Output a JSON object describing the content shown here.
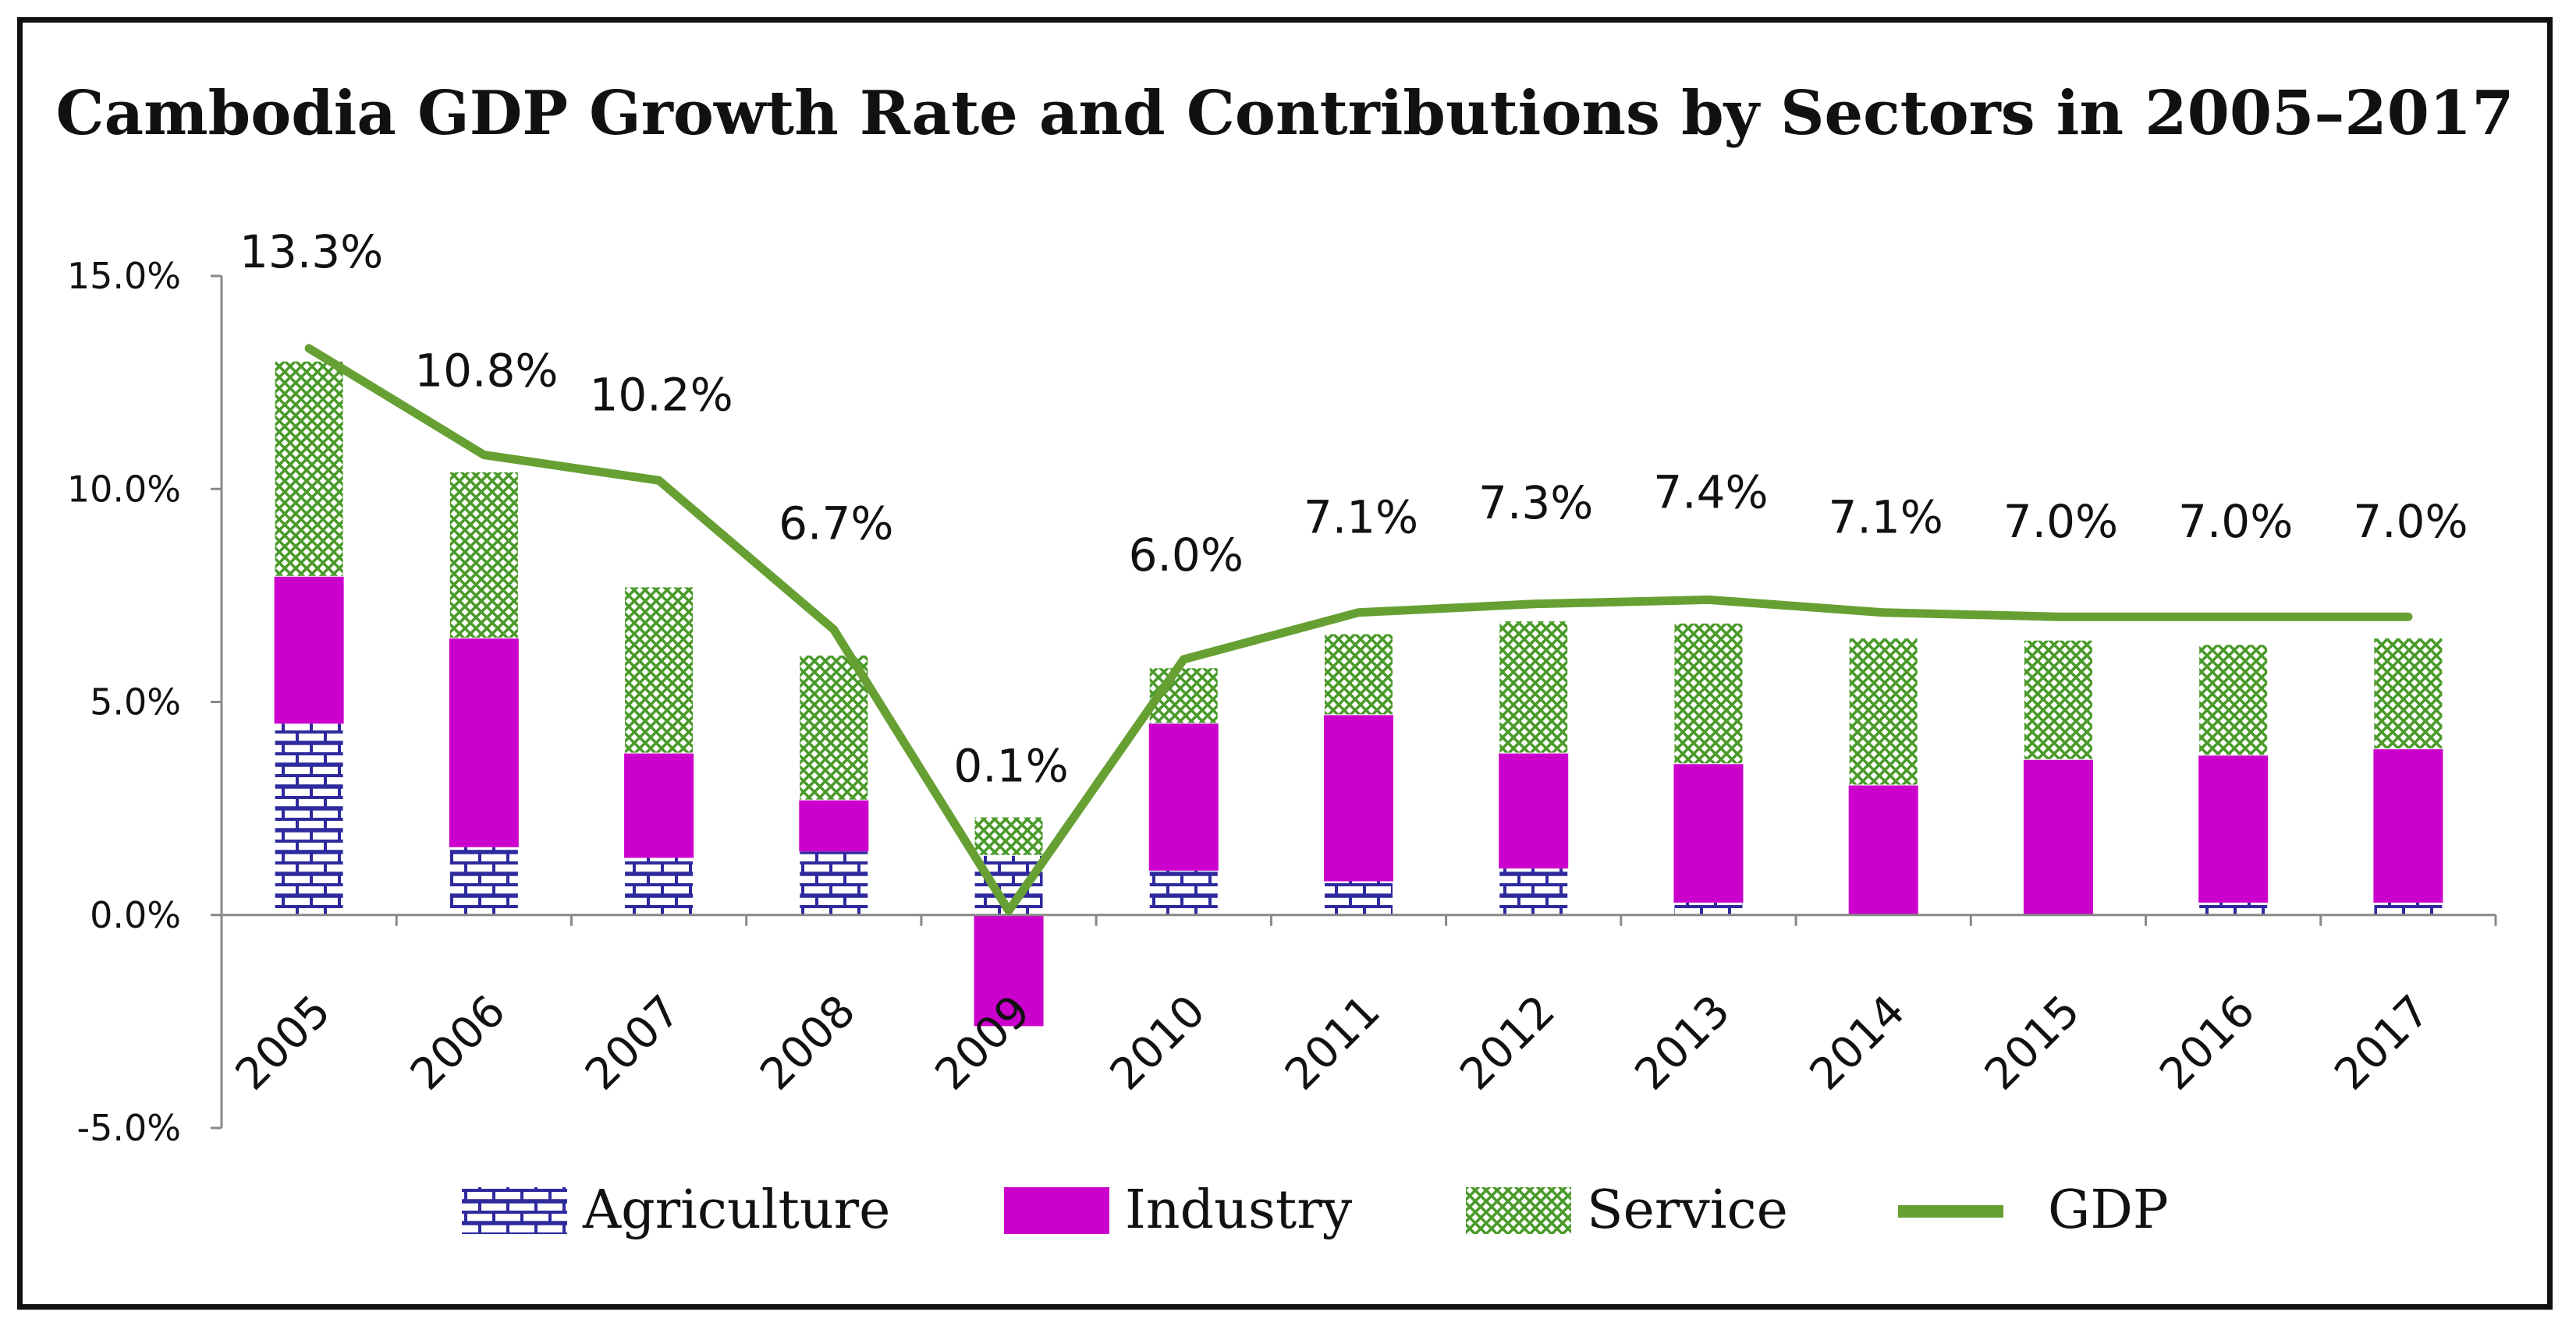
{
  "chart_data": {
    "type": "bar",
    "title": "Cambodia GDP Growth Rate and Contributions by Sectors in 2005–2017",
    "xlabel": "",
    "ylabel": "",
    "ylim": [
      -5.0,
      15.0
    ],
    "yticks": [
      15.0,
      10.0,
      5.0,
      0.0,
      -5.0
    ],
    "ytick_labels": [
      "15.0%",
      "10.0%",
      "5.0%",
      "0.0%",
      "-5.0%"
    ],
    "categories": [
      "2005",
      "2006",
      "2007",
      "2008",
      "2009",
      "2010",
      "2011",
      "2012",
      "2013",
      "2014",
      "2015",
      "2016",
      "2017"
    ],
    "stacked": true,
    "series": [
      {
        "name": "Agriculture",
        "kind": "bar",
        "pattern": "brick",
        "color": "#2e2a9e",
        "values": [
          4.5,
          1.6,
          1.35,
          1.5,
          1.4,
          1.05,
          0.8,
          1.1,
          0.3,
          0.0,
          0.0,
          0.3,
          0.3
        ]
      },
      {
        "name": "Industry",
        "kind": "bar",
        "pattern": "solid",
        "color": "#cc00cc",
        "values": [
          3.45,
          4.9,
          2.45,
          1.2,
          -2.6,
          3.45,
          3.9,
          2.7,
          3.25,
          3.05,
          3.65,
          3.45,
          3.6
        ]
      },
      {
        "name": "Service",
        "kind": "bar",
        "pattern": "crosshatch",
        "color": "#4a9a2a",
        "values": [
          5.05,
          3.9,
          3.9,
          3.4,
          0.9,
          1.3,
          1.9,
          3.1,
          3.3,
          3.45,
          2.8,
          2.6,
          2.6
        ]
      },
      {
        "name": "GDP",
        "kind": "line",
        "color": "#66a033",
        "values": [
          13.3,
          10.8,
          10.2,
          6.7,
          0.1,
          6.0,
          7.1,
          7.3,
          7.4,
          7.1,
          7.0,
          7.0,
          7.0
        ],
        "labels": [
          "13.3%",
          "10.8%",
          "10.2%",
          "6.7%",
          "0.1%",
          "6.0%",
          "7.1%",
          "7.3%",
          "7.4%",
          "7.1%",
          "7.0%",
          "7.0%",
          "7.0%"
        ]
      }
    ],
    "legend": {
      "placement": "bottom",
      "items": [
        {
          "name": "Agriculture",
          "swatch": "brick"
        },
        {
          "name": "Industry",
          "swatch": "solid"
        },
        {
          "name": "Service",
          "swatch": "crosshatch"
        },
        {
          "name": "GDP",
          "swatch": "line"
        }
      ]
    }
  }
}
